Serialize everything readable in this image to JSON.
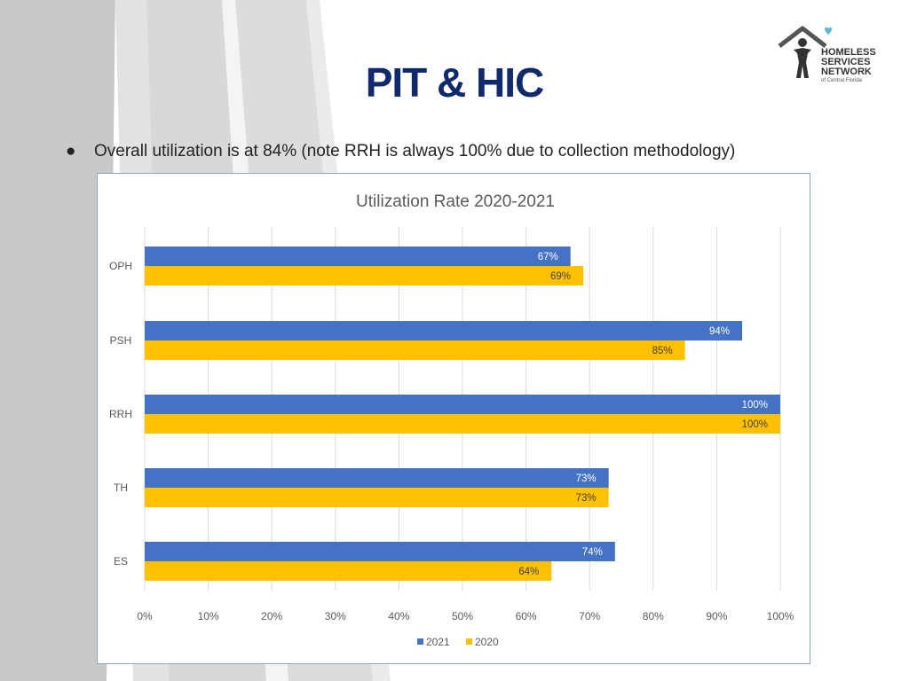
{
  "slide": {
    "title": "PIT & HIC",
    "bullet": "Overall utilization is at 84% (note RRH is always 100% due to collection methodology)"
  },
  "logo": {
    "line1": "HOMELESS",
    "line2": "SERVICES",
    "line3": "NETWORK",
    "line4": "of Central Florida",
    "colors": {
      "house": "#555555",
      "person": "#333333",
      "heart": "#5bb6d9",
      "letter_accent": "#2a9fd6"
    }
  },
  "chart_data": {
    "type": "bar",
    "orientation": "horizontal",
    "title": "Utilization Rate 2020-2021",
    "categories": [
      "OPH",
      "PSH",
      "RRH",
      "TH",
      "ES"
    ],
    "series": [
      {
        "name": "2021",
        "color": "#4472c4",
        "values": [
          67,
          94,
          100,
          73,
          74
        ],
        "labels": [
          "67%",
          "94%",
          "100%",
          "73%",
          "74%"
        ]
      },
      {
        "name": "2020",
        "color": "#ffc000",
        "values": [
          69,
          85,
          100,
          73,
          64
        ],
        "labels": [
          "69%",
          "85%",
          "100%",
          "73%",
          "64%"
        ]
      }
    ],
    "xlim": [
      0,
      100
    ],
    "xticks": [
      "0%",
      "10%",
      "20%",
      "30%",
      "40%",
      "50%",
      "60%",
      "70%",
      "80%",
      "90%",
      "100%"
    ],
    "grid": true,
    "legend": "bottom"
  }
}
